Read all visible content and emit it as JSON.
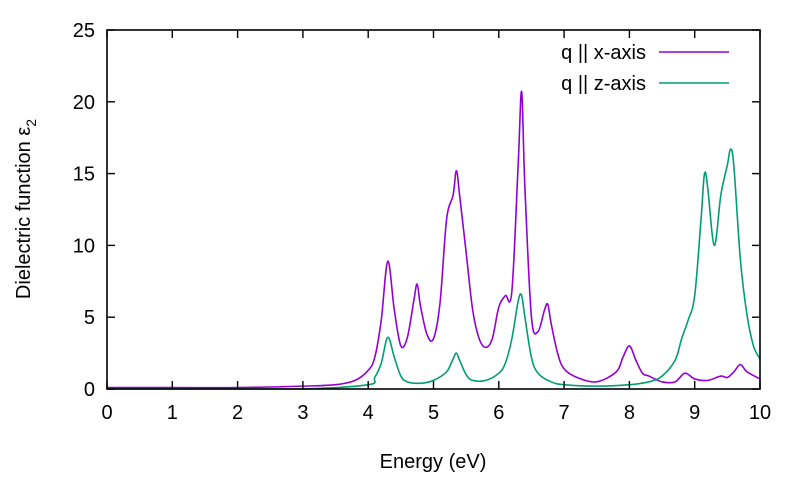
{
  "chart_data": {
    "type": "line",
    "title": "",
    "xlabel": "Energy (eV)",
    "ylabel": "Dielectric function ε",
    "ylabel_subscript": "2",
    "xlim": [
      0,
      10
    ],
    "ylim": [
      0,
      25
    ],
    "xticks": [
      0,
      1,
      2,
      3,
      4,
      5,
      6,
      7,
      8,
      9,
      10
    ],
    "yticks": [
      0,
      5,
      10,
      15,
      20,
      25
    ],
    "grid": false,
    "legend_position": "top-right",
    "series": [
      {
        "name": "q || x-axis",
        "color": "#9400d3",
        "x": [
          0,
          1,
          2,
          3,
          3.5,
          3.8,
          4.0,
          4.1,
          4.2,
          4.3,
          4.4,
          4.5,
          4.6,
          4.7,
          4.75,
          4.8,
          4.9,
          5.0,
          5.1,
          5.2,
          5.3,
          5.35,
          5.4,
          5.5,
          5.6,
          5.7,
          5.8,
          5.9,
          6.0,
          6.1,
          6.2,
          6.3,
          6.35,
          6.4,
          6.5,
          6.6,
          6.7,
          6.75,
          6.8,
          6.9,
          7.0,
          7.2,
          7.5,
          7.8,
          7.9,
          8.0,
          8.1,
          8.2,
          8.3,
          8.5,
          8.7,
          8.85,
          9.0,
          9.2,
          9.4,
          9.5,
          9.6,
          9.7,
          9.8,
          10.0
        ],
        "y": [
          0.1,
          0.1,
          0.1,
          0.2,
          0.3,
          0.6,
          1.3,
          2.2,
          4.8,
          8.9,
          5.5,
          3.0,
          3.6,
          6.2,
          7.3,
          5.8,
          3.8,
          3.5,
          6.0,
          11.8,
          13.5,
          15.2,
          13.5,
          9.5,
          5.5,
          3.5,
          2.9,
          3.5,
          5.7,
          6.5,
          6.8,
          16.0,
          20.7,
          14.0,
          5.0,
          4.0,
          5.5,
          5.9,
          4.6,
          2.5,
          1.4,
          0.8,
          0.5,
          1.2,
          2.2,
          3.0,
          2.0,
          1.1,
          0.9,
          0.5,
          0.5,
          1.1,
          0.7,
          0.6,
          0.9,
          0.8,
          1.2,
          1.7,
          1.2,
          0.7
        ]
      },
      {
        "name": "q || z-axis",
        "color": "#009e73",
        "x": [
          0,
          1,
          2,
          3,
          4.0,
          4.1,
          4.2,
          4.3,
          4.4,
          4.5,
          4.6,
          4.8,
          5.0,
          5.2,
          5.3,
          5.35,
          5.4,
          5.5,
          5.6,
          5.8,
          6.0,
          6.1,
          6.2,
          6.3,
          6.35,
          6.4,
          6.5,
          6.6,
          6.8,
          7.0,
          7.5,
          8.0,
          8.3,
          8.5,
          8.7,
          8.8,
          8.9,
          9.0,
          9.1,
          9.15,
          9.2,
          9.3,
          9.4,
          9.5,
          9.55,
          9.6,
          9.7,
          9.8,
          9.9,
          10.0
        ],
        "y": [
          0.0,
          0.0,
          0.0,
          0.0,
          0.3,
          0.8,
          1.8,
          3.6,
          2.2,
          0.9,
          0.5,
          0.4,
          0.6,
          1.2,
          2.1,
          2.5,
          2.0,
          1.0,
          0.6,
          0.6,
          1.1,
          1.8,
          3.5,
          6.2,
          6.5,
          5.0,
          2.2,
          1.1,
          0.5,
          0.3,
          0.2,
          0.3,
          0.5,
          0.9,
          2.0,
          3.5,
          4.8,
          6.5,
          12.0,
          15.0,
          14.0,
          10.0,
          13.5,
          15.6,
          16.7,
          15.5,
          9.0,
          5.2,
          3.0,
          2.1
        ]
      }
    ]
  }
}
